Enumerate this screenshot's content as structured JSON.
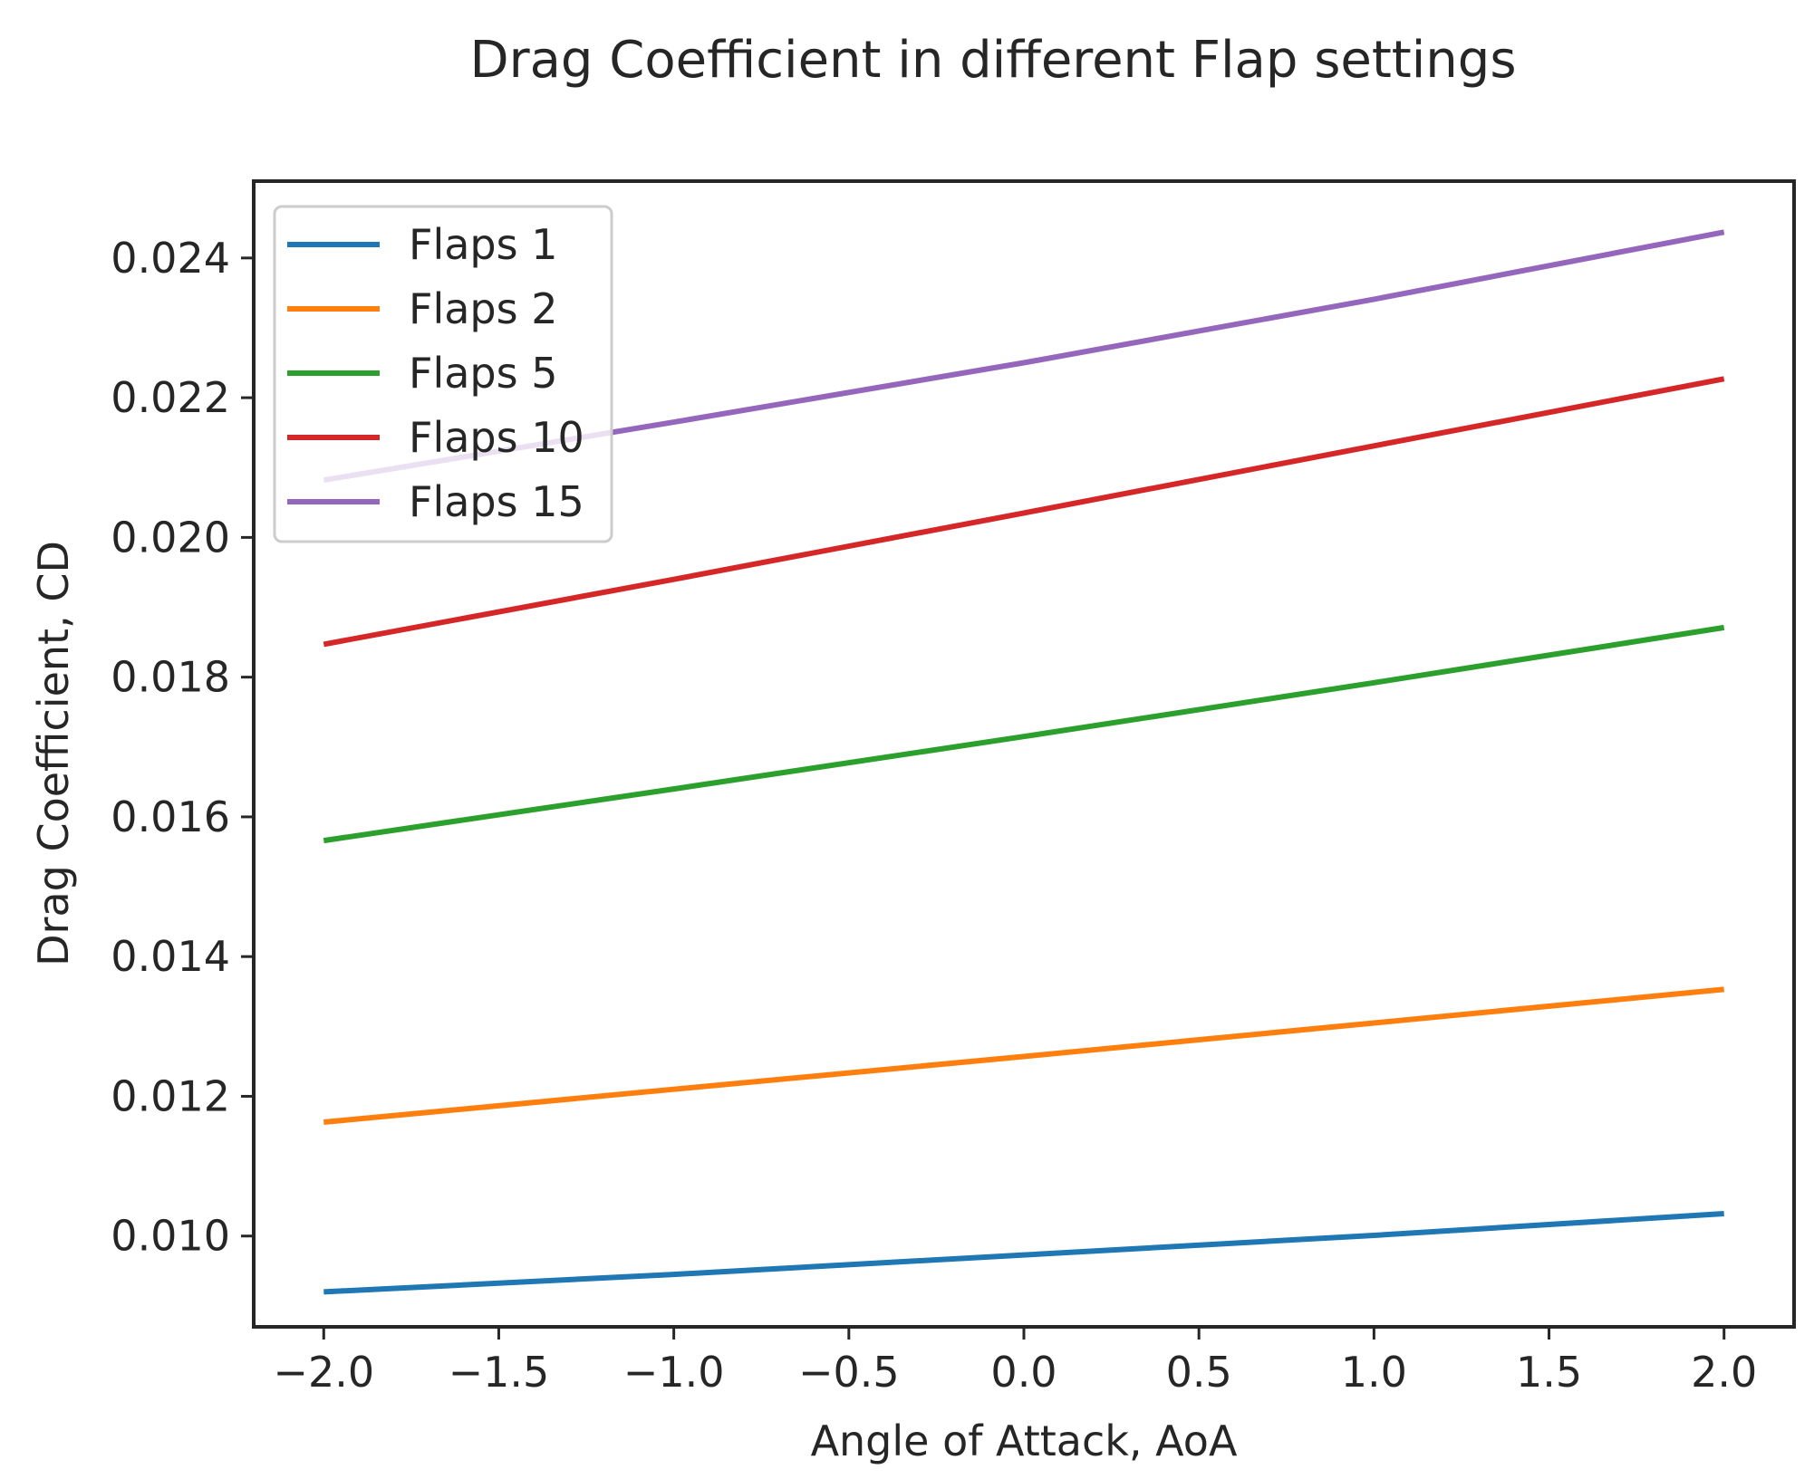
{
  "chart_data": {
    "type": "line",
    "title": "Drag Coefficient in different Flap settings",
    "xlabel": "Angle of Attack, AoA",
    "ylabel": "Drag Coefficient, CD",
    "x": [
      -2.0,
      -1.0,
      0.0,
      1.0,
      2.0
    ],
    "xlim": [
      -2.2,
      2.2
    ],
    "ylim": [
      0.0087,
      0.0251
    ],
    "xticks": [
      -2.0,
      -1.5,
      -1.0,
      -0.5,
      0.0,
      0.5,
      1.0,
      1.5,
      2.0
    ],
    "xtick_labels": [
      "−2.0",
      "−1.5",
      "−1.0",
      "−0.5",
      "0.0",
      "0.5",
      "1.0",
      "1.5",
      "2.0"
    ],
    "yticks": [
      0.01,
      0.012,
      0.014,
      0.016,
      0.018,
      0.02,
      0.022,
      0.024
    ],
    "ytick_labels": [
      "0.010",
      "0.012",
      "0.014",
      "0.016",
      "0.018",
      "0.020",
      "0.022",
      "0.024"
    ],
    "grid": false,
    "legend_position": "top-left",
    "series": [
      {
        "name": "Flaps 1",
        "color": "#1f77b4",
        "values": [
          0.0092,
          0.00945,
          0.00973,
          0.01001,
          0.01032
        ]
      },
      {
        "name": "Flaps 2",
        "color": "#ff7f0e",
        "values": [
          0.01163,
          0.0121,
          0.01257,
          0.01305,
          0.01353
        ]
      },
      {
        "name": "Flaps 5",
        "color": "#2ca02c",
        "values": [
          0.01566,
          0.0164,
          0.01715,
          0.01792,
          0.01871
        ]
      },
      {
        "name": "Flaps 10",
        "color": "#d62728",
        "values": [
          0.01847,
          0.0194,
          0.02035,
          0.02131,
          0.02227
        ]
      },
      {
        "name": "Flaps 15",
        "color": "#9467bd",
        "values": [
          0.02082,
          0.02165,
          0.0225,
          0.02341,
          0.02437
        ]
      }
    ]
  }
}
